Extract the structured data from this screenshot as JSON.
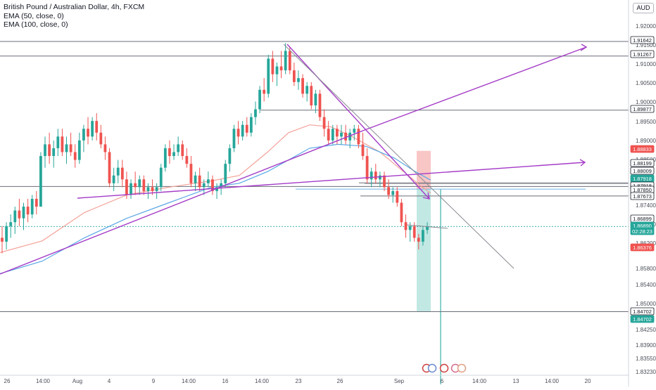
{
  "header": {
    "title": "British Pound / Australian Dollar, 4h, FXCM",
    "indicators": [
      "EMA (50, close, 0)",
      "EMA (100, close, 0)"
    ],
    "currency": "AUD"
  },
  "colors": {
    "up": "#26a69a",
    "down": "#ef5350",
    "ema50": "#f4a29a",
    "ema100": "#5aa7e6",
    "trendline": "#a43cc7",
    "hline": "#6b6e78",
    "grid": "#e6e8ee"
  },
  "price_axis": {
    "ticks": [
      "1.92000",
      "1.91500",
      "1.91000",
      "1.90500",
      "1.90000",
      "1.89500",
      "1.89000",
      "1.88500",
      "1.87400",
      "1.86600",
      "1.86200",
      "1.85800",
      "1.85400",
      "1.85000",
      "1.84250",
      "1.83900",
      "1.83550",
      "1.83230"
    ],
    "labels": [
      {
        "text": "1.91642",
        "style": "outline"
      },
      {
        "text": "1.91267",
        "style": "outline"
      },
      {
        "text": "1.89877",
        "style": "outline"
      },
      {
        "text": "1.88833",
        "style": "red"
      },
      {
        "text": "1.88199",
        "style": "outline"
      },
      {
        "text": "1.88009",
        "style": "outline"
      },
      {
        "text": "1.87918",
        "style": "green"
      },
      {
        "text": "1.87918",
        "style": "outline"
      },
      {
        "text": "1.87850",
        "style": "outline"
      },
      {
        "text": "1.87673",
        "style": "outline"
      },
      {
        "text": "1.86899",
        "style": "outline"
      },
      {
        "text": "1.86890",
        "style": "green"
      },
      {
        "text": "02:28:23",
        "style": "green"
      },
      {
        "text": "1.86376",
        "style": "red"
      },
      {
        "text": "1.84702",
        "style": "outline"
      },
      {
        "text": "1.84702",
        "style": "green"
      }
    ]
  },
  "time_axis": {
    "labels": [
      "26",
      "14:00",
      "Aug",
      "4",
      "9",
      "14:00",
      "16",
      "14:00",
      "23",
      "26",
      "Sep",
      "6",
      "14:00",
      "13",
      "14:00",
      "20"
    ]
  },
  "chart_data": {
    "type": "candlestick",
    "title": "British Pound / Australian Dollar, 4h, FXCM",
    "ylabel": "AUD",
    "ylim": [
      1.8316,
      1.924
    ],
    "series": [
      {
        "name": "EMA (50, close, 0)"
      },
      {
        "name": "EMA (100, close, 0)"
      }
    ],
    "horizontal_levels": [
      1.91642,
      1.91267,
      1.89877,
      1.88009,
      1.87918,
      1.8785,
      1.87673,
      1.84702
    ],
    "last_price": 1.8689,
    "countdown": "02:28:23",
    "short_position": {
      "stop": 1.88833,
      "entry": 1.8785,
      "target": 1.84702
    },
    "candles": [
      [
        1.866,
        1.869,
        1.862,
        1.865
      ],
      [
        1.865,
        1.87,
        1.863,
        1.869
      ],
      [
        1.869,
        1.872,
        1.866,
        1.87
      ],
      [
        1.87,
        1.874,
        1.867,
        1.873
      ],
      [
        1.873,
        1.876,
        1.869,
        1.871
      ],
      [
        1.871,
        1.875,
        1.868,
        1.874
      ],
      [
        1.874,
        1.876,
        1.87,
        1.872
      ],
      [
        1.872,
        1.877,
        1.871,
        1.876
      ],
      [
        1.876,
        1.878,
        1.872,
        1.874
      ],
      [
        1.874,
        1.888,
        1.874,
        1.887
      ],
      [
        1.887,
        1.892,
        1.884,
        1.89
      ],
      [
        1.89,
        1.893,
        1.885,
        1.887
      ],
      [
        1.887,
        1.891,
        1.884,
        1.889
      ],
      [
        1.889,
        1.894,
        1.887,
        1.892
      ],
      [
        1.892,
        1.894,
        1.887,
        1.888
      ],
      [
        1.888,
        1.892,
        1.885,
        1.89
      ],
      [
        1.89,
        1.893,
        1.887,
        1.888
      ],
      [
        1.888,
        1.89,
        1.884,
        1.886
      ],
      [
        1.886,
        1.893,
        1.885,
        1.891
      ],
      [
        1.891,
        1.895,
        1.888,
        1.894
      ],
      [
        1.894,
        1.897,
        1.89,
        1.892
      ],
      [
        1.892,
        1.897,
        1.891,
        1.896
      ],
      [
        1.896,
        1.898,
        1.891,
        1.893
      ],
      [
        1.893,
        1.895,
        1.889,
        1.89
      ],
      [
        1.89,
        1.892,
        1.886,
        1.888
      ],
      [
        1.888,
        1.889,
        1.879,
        1.88
      ],
      [
        1.88,
        1.884,
        1.878,
        1.882
      ],
      [
        1.882,
        1.886,
        1.88,
        1.884
      ],
      [
        1.884,
        1.886,
        1.879,
        1.881
      ],
      [
        1.881,
        1.883,
        1.876,
        1.877
      ],
      [
        1.877,
        1.881,
        1.876,
        1.88
      ],
      [
        1.88,
        1.883,
        1.877,
        1.879
      ],
      [
        1.879,
        1.882,
        1.877,
        1.881
      ],
      [
        1.881,
        1.882,
        1.877,
        1.878
      ],
      [
        1.878,
        1.88,
        1.876,
        1.879
      ],
      [
        1.879,
        1.881,
        1.877,
        1.878
      ],
      [
        1.878,
        1.88,
        1.876,
        1.879
      ],
      [
        1.879,
        1.885,
        1.878,
        1.884
      ],
      [
        1.884,
        1.89,
        1.883,
        1.889
      ],
      [
        1.889,
        1.891,
        1.885,
        1.887
      ],
      [
        1.887,
        1.89,
        1.886,
        1.888
      ],
      [
        1.888,
        1.892,
        1.887,
        1.89
      ],
      [
        1.89,
        1.891,
        1.886,
        1.887
      ],
      [
        1.887,
        1.889,
        1.884,
        1.885
      ],
      [
        1.885,
        1.887,
        1.879,
        1.88
      ],
      [
        1.88,
        1.883,
        1.878,
        1.882
      ],
      [
        1.882,
        1.884,
        1.878,
        1.879
      ],
      [
        1.879,
        1.881,
        1.877,
        1.88
      ],
      [
        1.88,
        1.883,
        1.879,
        1.881
      ],
      [
        1.881,
        1.882,
        1.877,
        1.878
      ],
      [
        1.878,
        1.88,
        1.876,
        1.879
      ],
      [
        1.879,
        1.881,
        1.877,
        1.88
      ],
      [
        1.88,
        1.886,
        1.879,
        1.885
      ],
      [
        1.885,
        1.89,
        1.883,
        1.889
      ],
      [
        1.889,
        1.895,
        1.888,
        1.894
      ],
      [
        1.894,
        1.896,
        1.89,
        1.892
      ],
      [
        1.892,
        1.896,
        1.891,
        1.895
      ],
      [
        1.895,
        1.897,
        1.892,
        1.893
      ],
      [
        1.893,
        1.898,
        1.892,
        1.897
      ],
      [
        1.897,
        1.901,
        1.895,
        1.899
      ],
      [
        1.899,
        1.905,
        1.898,
        1.904
      ],
      [
        1.904,
        1.907,
        1.901,
        1.903
      ],
      [
        1.903,
        1.913,
        1.902,
        1.912
      ],
      [
        1.912,
        1.914,
        1.906,
        1.908
      ],
      [
        1.908,
        1.911,
        1.905,
        1.91
      ],
      [
        1.91,
        1.914,
        1.907,
        1.909
      ],
      [
        1.909,
        1.916,
        1.908,
        1.914
      ],
      [
        1.914,
        1.915,
        1.908,
        1.909
      ],
      [
        1.909,
        1.911,
        1.905,
        1.906
      ],
      [
        1.906,
        1.909,
        1.904,
        1.907
      ],
      [
        1.907,
        1.908,
        1.902,
        1.903
      ],
      [
        1.903,
        1.906,
        1.901,
        1.905
      ],
      [
        1.905,
        1.906,
        1.899,
        1.9
      ],
      [
        1.9,
        1.904,
        1.898,
        1.903
      ],
      [
        1.903,
        1.904,
        1.896,
        1.897
      ],
      [
        1.897,
        1.899,
        1.892,
        1.894
      ],
      [
        1.894,
        1.896,
        1.89,
        1.891
      ],
      [
        1.891,
        1.895,
        1.89,
        1.894
      ],
      [
        1.894,
        1.895,
        1.89,
        1.892
      ],
      [
        1.892,
        1.895,
        1.89,
        1.893
      ],
      [
        1.893,
        1.895,
        1.89,
        1.891
      ],
      [
        1.891,
        1.894,
        1.889,
        1.893
      ],
      [
        1.893,
        1.895,
        1.891,
        1.894
      ],
      [
        1.894,
        1.895,
        1.889,
        1.89
      ],
      [
        1.89,
        1.893,
        1.886,
        1.887
      ],
      [
        1.887,
        1.889,
        1.88,
        1.881
      ],
      [
        1.881,
        1.884,
        1.879,
        1.883
      ],
      [
        1.883,
        1.885,
        1.88,
        1.881
      ],
      [
        1.881,
        1.883,
        1.879,
        1.882
      ],
      [
        1.882,
        1.883,
        1.878,
        1.879
      ],
      [
        1.879,
        1.881,
        1.876,
        1.877
      ],
      [
        1.877,
        1.879,
        1.875,
        1.878
      ],
      [
        1.878,
        1.879,
        1.874,
        1.875
      ],
      [
        1.875,
        1.876,
        1.869,
        1.87
      ],
      [
        1.87,
        1.872,
        1.866,
        1.868
      ],
      [
        1.868,
        1.87,
        1.865,
        1.869
      ],
      [
        1.869,
        1.87,
        1.865,
        1.866
      ],
      [
        1.866,
        1.867,
        1.863,
        1.865
      ],
      [
        1.865,
        1.869,
        1.864,
        1.868
      ],
      [
        1.868,
        1.87,
        1.867,
        1.8689
      ]
    ]
  }
}
